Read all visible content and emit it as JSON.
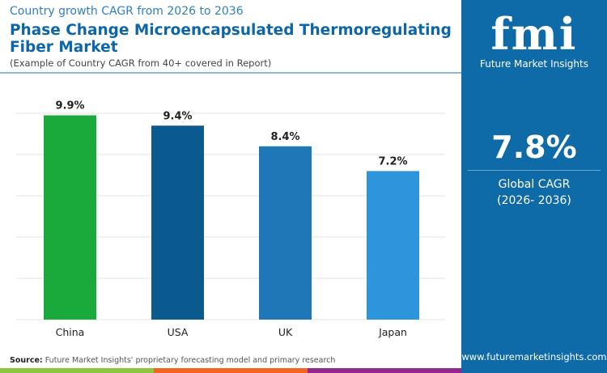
{
  "header": {
    "subtitle": "Country growth CAGR from 2026 to 2036",
    "title": "Phase Change Microencapsulated Thermoregulating Fiber Market",
    "note": "(Example of Country CAGR from 40+ covered in Report)"
  },
  "panel": {
    "logo_text": "fmi",
    "logo_subtitle": "Future Market Insights",
    "value": "7.8%",
    "label_line1": "Global CAGR",
    "label_line2": "(2026- 2036)",
    "website": "www.futuremarketinsights.com"
  },
  "footer": {
    "source_label": "Source:",
    "source_text": " Future Market Insights' proprietary forecasting model and primary research"
  },
  "colors": {
    "brand": "#0f6aa8",
    "stripes": [
      "#8dc63f",
      "#f26522",
      "#92278f",
      "#0f6aa8"
    ]
  },
  "chart_data": {
    "type": "bar",
    "categories": [
      "China",
      "USA",
      "UK",
      "Japan"
    ],
    "values": [
      9.9,
      9.4,
      8.4,
      7.2
    ],
    "labels": [
      "9.9%",
      "9.4%",
      "8.4%",
      "7.2%"
    ],
    "colors": [
      "#1aaa3c",
      "#0b5a8f",
      "#1f77b8",
      "#2e95dc"
    ],
    "ylim": [
      0,
      10
    ],
    "grid": true
  }
}
